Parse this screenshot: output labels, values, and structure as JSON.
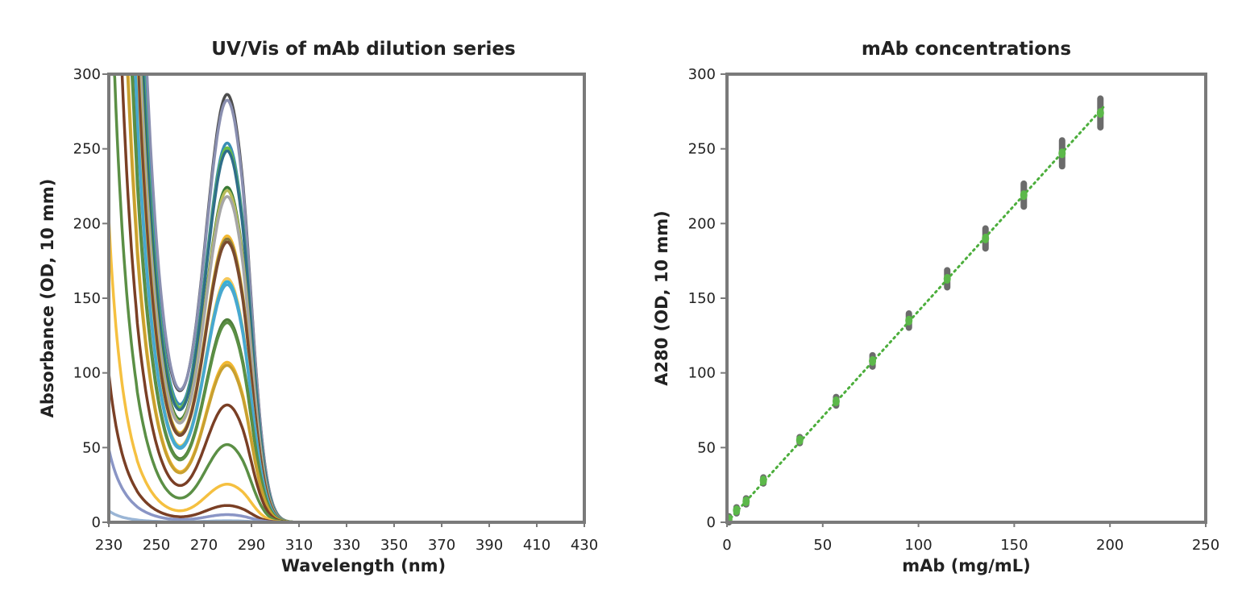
{
  "chart_data": [
    {
      "type": "line",
      "title": "UV/Vis of mAb dilution series",
      "xlabel": "Wavelength (nm)",
      "ylabel": "Absorbance (OD, 10 mm)",
      "xlim": [
        230,
        430
      ],
      "ylim": [
        0,
        300
      ],
      "x_ticks": [
        "230",
        "250",
        "270",
        "290",
        "310",
        "330",
        "350",
        "370",
        "390",
        "410",
        "430"
      ],
      "y_ticks": [
        "0",
        "50",
        "100",
        "150",
        "200",
        "250",
        "300"
      ],
      "grid": false,
      "legend": "none",
      "peak_wavelength": 280,
      "trough_wavelength": 250,
      "series": [
        {
          "peak": 281,
          "trough": 92,
          "color": "#4d4d4d"
        },
        {
          "peak": 277,
          "trough": 94,
          "color": "#8a8fb0"
        },
        {
          "peak": 249,
          "trough": 83,
          "color": "#3a8fb5"
        },
        {
          "peak": 246,
          "trough": 80,
          "color": "#6abf45"
        },
        {
          "peak": 244,
          "trough": 78,
          "color": "#2f6e8a"
        },
        {
          "peak": 220,
          "trough": 72,
          "color": "#3a7a35"
        },
        {
          "peak": 218,
          "trough": 70,
          "color": "#b8bc5a"
        },
        {
          "peak": 214,
          "trough": 69,
          "color": "#a6a6a6"
        },
        {
          "peak": 188,
          "trough": 63,
          "color": "#f2b830"
        },
        {
          "peak": 186,
          "trough": 62,
          "color": "#8a7a3a"
        },
        {
          "peak": 184,
          "trough": 61,
          "color": "#7a4a2e"
        },
        {
          "peak": 160,
          "trough": 54,
          "color": "#f5c85a"
        },
        {
          "peak": 158,
          "trough": 53,
          "color": "#36b1d8"
        },
        {
          "peak": 156,
          "trough": 52,
          "color": "#48a8cf"
        },
        {
          "peak": 133,
          "trough": 45,
          "color": "#4f7f3a"
        },
        {
          "peak": 131,
          "trough": 44,
          "color": "#5b8f45"
        },
        {
          "peak": 105,
          "trough": 36,
          "color": "#f2b830"
        },
        {
          "peak": 103,
          "trough": 35,
          "color": "#c8a030"
        },
        {
          "peak": 77,
          "trough": 26,
          "color": "#7a3f25"
        },
        {
          "peak": 51,
          "trough": 17,
          "color": "#5b8f45"
        },
        {
          "peak": 25,
          "trough": 8,
          "color": "#f5c040"
        },
        {
          "peak": 11,
          "trough": 4,
          "color": "#7a3f25"
        },
        {
          "peak": 5,
          "trough": 2,
          "color": "#8a95c5"
        },
        {
          "peak": 1,
          "trough": 0.3,
          "color": "#9ab5d5"
        }
      ]
    },
    {
      "type": "scatter",
      "title": "mAb concentrations",
      "xlabel": "mAb (mg/mL)",
      "ylabel": "A280 (OD, 10 mm)",
      "xlim": [
        0,
        250
      ],
      "ylim": [
        0,
        300
      ],
      "x_ticks": [
        "0",
        "50",
        "100",
        "150",
        "200",
        "250"
      ],
      "y_ticks": [
        "0",
        "50",
        "100",
        "150",
        "200",
        "250",
        "300"
      ],
      "grid": false,
      "legend": "none",
      "points": [
        {
          "x": 1,
          "y": 2
        },
        {
          "x": 5,
          "y": 8
        },
        {
          "x": 10,
          "y": 14
        },
        {
          "x": 19,
          "y": 28
        },
        {
          "x": 38,
          "y": 55
        },
        {
          "x": 57,
          "y": 81
        },
        {
          "x": 76,
          "y": 108
        },
        {
          "x": 95,
          "y": 135
        },
        {
          "x": 115,
          "y": 163
        },
        {
          "x": 135,
          "y": 190
        },
        {
          "x": 155,
          "y": 219
        },
        {
          "x": 175,
          "y": 247
        },
        {
          "x": 195,
          "y": 274
        }
      ],
      "point_color": "#5cb84a",
      "replicate_color": "#6b6b6b",
      "fit": {
        "slope": 1.414,
        "intercept": 0,
        "x_range": [
          0,
          197
        ],
        "style": "dotted",
        "color": "#4cae3c"
      }
    }
  ]
}
